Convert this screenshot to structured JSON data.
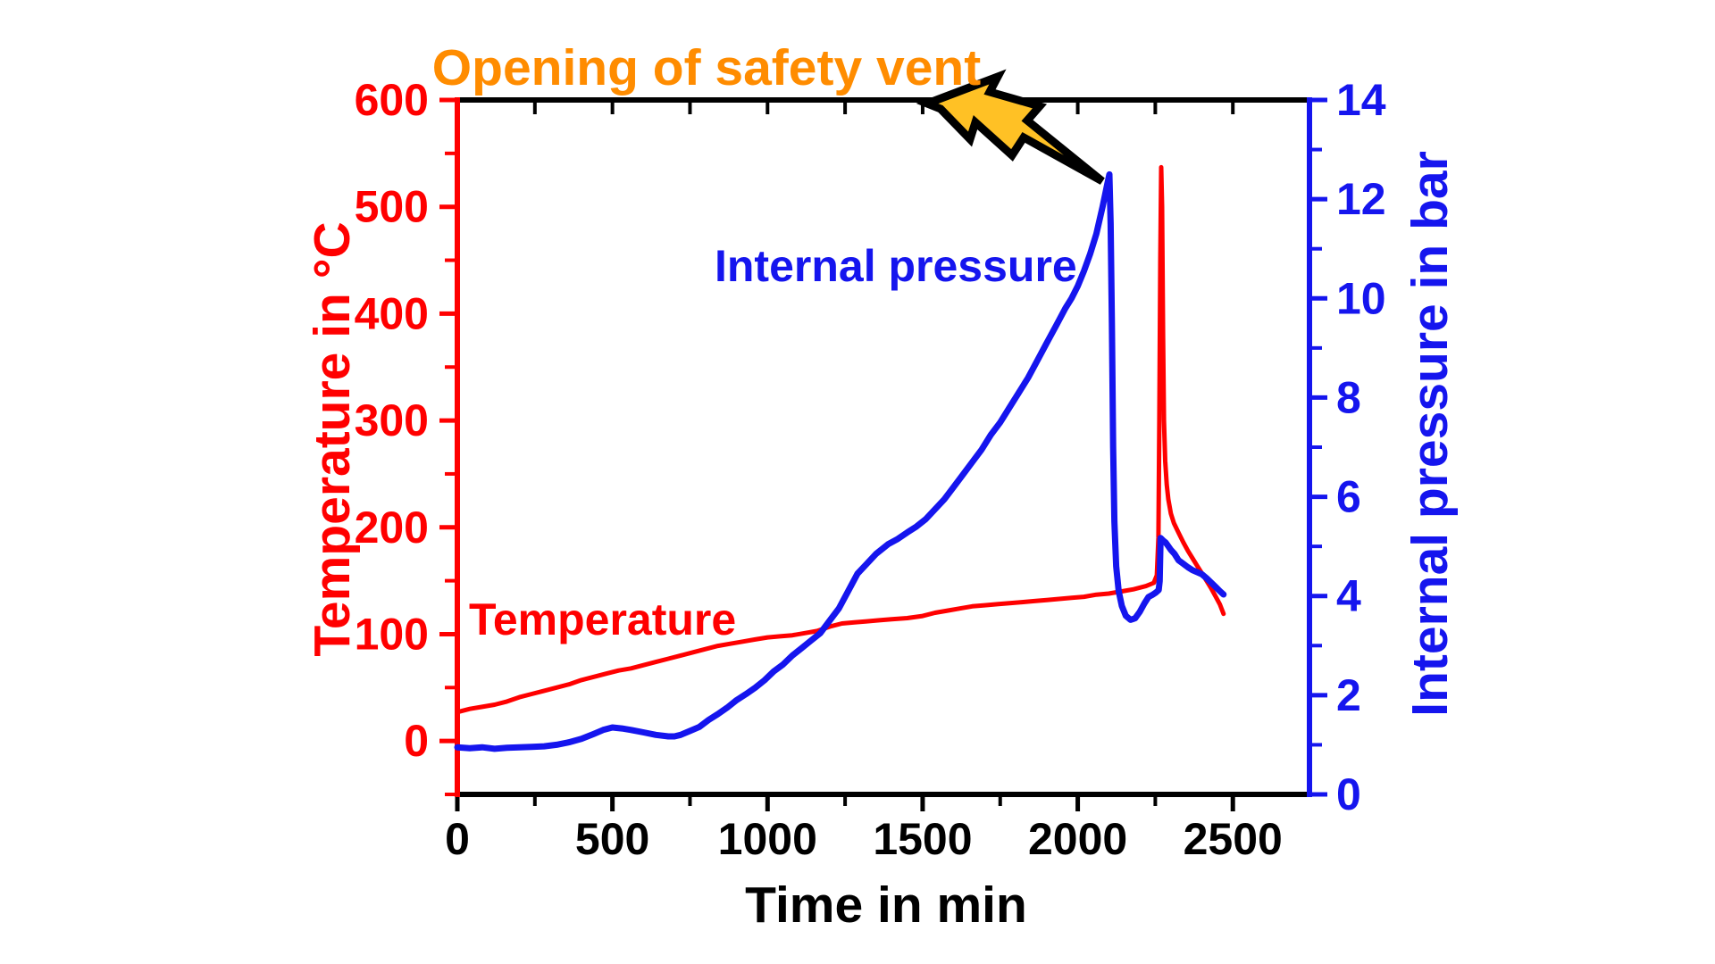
{
  "figure": {
    "background": "#FFFFFF"
  },
  "annotations": {
    "vent_title": "Opening of safety vent",
    "vent_title_color": "#FF8C00",
    "temperature_label": "Temperature",
    "pressure_label": "Internal pressure",
    "lightning_icon": "lightning-bolt-icon",
    "lightning_fill": "#FFC125",
    "lightning_stroke": "#000000"
  },
  "colors": {
    "temperature": "#FF0000",
    "pressure": "#1515EE",
    "frame": "#000000",
    "title_orange": "#FF8C00"
  },
  "chart_data": {
    "type": "line",
    "title": "Opening of safety vent",
    "xlabel": "Time in min",
    "ylabel_left": "Temperature in °C",
    "ylabel_right": "Internal pressure in bar",
    "grid": false,
    "x_range": [
      0,
      2747
    ],
    "y_left_range": [
      -50,
      600
    ],
    "y_right_range": [
      0,
      14
    ],
    "x_ticks_major": [
      0,
      500,
      1000,
      1500,
      2000,
      2500
    ],
    "x_ticks_minor": [
      250,
      750,
      1250,
      1750,
      2250
    ],
    "top_ticks": [
      250,
      500,
      750,
      1000,
      1250,
      1500,
      1750,
      2000,
      2250,
      2500
    ],
    "y_left_ticks_major": [
      0,
      100,
      200,
      300,
      400,
      500,
      600
    ],
    "y_left_ticks_minor": [
      -50,
      50,
      150,
      250,
      350,
      450,
      550
    ],
    "y_right_ticks_major": [
      0,
      2,
      4,
      6,
      8,
      10,
      12,
      14
    ],
    "y_right_ticks_minor": [
      1,
      3,
      5,
      7,
      9,
      11,
      13
    ],
    "event": {
      "label": "Opening of safety vent",
      "time_min": 2100,
      "pressure_bar": 12.5
    },
    "series": [
      {
        "name": "Temperature",
        "axis": "left",
        "unit": "°C",
        "color": "#FF0000",
        "width": 5,
        "points": [
          [
            0,
            27
          ],
          [
            40,
            30
          ],
          [
            80,
            32
          ],
          [
            120,
            34
          ],
          [
            160,
            37
          ],
          [
            200,
            41
          ],
          [
            240,
            44
          ],
          [
            280,
            47
          ],
          [
            320,
            50
          ],
          [
            360,
            53
          ],
          [
            400,
            57
          ],
          [
            440,
            60
          ],
          [
            480,
            63
          ],
          [
            520,
            66
          ],
          [
            560,
            68
          ],
          [
            600,
            71
          ],
          [
            640,
            74
          ],
          [
            680,
            77
          ],
          [
            720,
            80
          ],
          [
            760,
            83
          ],
          [
            800,
            86
          ],
          [
            840,
            89
          ],
          [
            880,
            91
          ],
          [
            920,
            93
          ],
          [
            960,
            95
          ],
          [
            1000,
            97
          ],
          [
            1040,
            98
          ],
          [
            1080,
            99
          ],
          [
            1120,
            101
          ],
          [
            1160,
            103
          ],
          [
            1180,
            105
          ],
          [
            1200,
            107
          ],
          [
            1240,
            110
          ],
          [
            1280,
            111
          ],
          [
            1320,
            112
          ],
          [
            1360,
            113
          ],
          [
            1400,
            114
          ],
          [
            1450,
            115
          ],
          [
            1500,
            117
          ],
          [
            1540,
            120
          ],
          [
            1580,
            122
          ],
          [
            1620,
            124
          ],
          [
            1660,
            126
          ],
          [
            1700,
            127
          ],
          [
            1740,
            128
          ],
          [
            1780,
            129
          ],
          [
            1820,
            130
          ],
          [
            1860,
            131
          ],
          [
            1900,
            132
          ],
          [
            1940,
            133
          ],
          [
            1980,
            134
          ],
          [
            2020,
            135
          ],
          [
            2060,
            137
          ],
          [
            2100,
            138
          ],
          [
            2140,
            140
          ],
          [
            2180,
            142
          ],
          [
            2220,
            145
          ],
          [
            2245,
            148
          ],
          [
            2255,
            155
          ],
          [
            2260,
            190
          ],
          [
            2263,
            300
          ],
          [
            2266,
            450
          ],
          [
            2269,
            537
          ],
          [
            2272,
            500
          ],
          [
            2275,
            380
          ],
          [
            2278,
            300
          ],
          [
            2282,
            262
          ],
          [
            2287,
            240
          ],
          [
            2292,
            226
          ],
          [
            2300,
            213
          ],
          [
            2310,
            204
          ],
          [
            2325,
            195
          ],
          [
            2340,
            186
          ],
          [
            2355,
            178
          ],
          [
            2370,
            171
          ],
          [
            2385,
            164
          ],
          [
            2400,
            157
          ],
          [
            2415,
            150
          ],
          [
            2430,
            143
          ],
          [
            2445,
            135
          ],
          [
            2458,
            128
          ],
          [
            2470,
            119
          ]
        ]
      },
      {
        "name": "Internal pressure",
        "axis": "right",
        "unit": "bar",
        "color": "#1515EE",
        "width": 7,
        "points": [
          [
            0,
            0.95
          ],
          [
            40,
            0.93
          ],
          [
            80,
            0.95
          ],
          [
            120,
            0.92
          ],
          [
            160,
            0.94
          ],
          [
            200,
            0.95
          ],
          [
            240,
            0.96
          ],
          [
            280,
            0.97
          ],
          [
            320,
            1.0
          ],
          [
            360,
            1.05
          ],
          [
            400,
            1.12
          ],
          [
            440,
            1.22
          ],
          [
            470,
            1.3
          ],
          [
            500,
            1.35
          ],
          [
            530,
            1.33
          ],
          [
            560,
            1.3
          ],
          [
            600,
            1.25
          ],
          [
            640,
            1.2
          ],
          [
            680,
            1.17
          ],
          [
            700,
            1.17
          ],
          [
            720,
            1.2
          ],
          [
            750,
            1.28
          ],
          [
            780,
            1.36
          ],
          [
            810,
            1.5
          ],
          [
            840,
            1.62
          ],
          [
            870,
            1.75
          ],
          [
            900,
            1.9
          ],
          [
            930,
            2.02
          ],
          [
            960,
            2.15
          ],
          [
            990,
            2.3
          ],
          [
            1020,
            2.48
          ],
          [
            1050,
            2.62
          ],
          [
            1080,
            2.8
          ],
          [
            1110,
            2.95
          ],
          [
            1140,
            3.1
          ],
          [
            1170,
            3.25
          ],
          [
            1200,
            3.5
          ],
          [
            1230,
            3.75
          ],
          [
            1260,
            4.1
          ],
          [
            1290,
            4.45
          ],
          [
            1320,
            4.65
          ],
          [
            1350,
            4.85
          ],
          [
            1390,
            5.05
          ],
          [
            1420,
            5.15
          ],
          [
            1450,
            5.28
          ],
          [
            1480,
            5.4
          ],
          [
            1510,
            5.55
          ],
          [
            1540,
            5.75
          ],
          [
            1570,
            5.95
          ],
          [
            1600,
            6.2
          ],
          [
            1630,
            6.45
          ],
          [
            1660,
            6.7
          ],
          [
            1690,
            6.95
          ],
          [
            1720,
            7.25
          ],
          [
            1750,
            7.5
          ],
          [
            1780,
            7.8
          ],
          [
            1810,
            8.1
          ],
          [
            1840,
            8.4
          ],
          [
            1870,
            8.75
          ],
          [
            1900,
            9.1
          ],
          [
            1930,
            9.45
          ],
          [
            1960,
            9.8
          ],
          [
            1980,
            10.0
          ],
          [
            2000,
            10.25
          ],
          [
            2020,
            10.55
          ],
          [
            2040,
            10.9
          ],
          [
            2060,
            11.3
          ],
          [
            2080,
            11.85
          ],
          [
            2095,
            12.3
          ],
          [
            2102,
            12.5
          ],
          [
            2106,
            11.5
          ],
          [
            2110,
            9.5
          ],
          [
            2114,
            7.0
          ],
          [
            2118,
            5.5
          ],
          [
            2124,
            4.6
          ],
          [
            2132,
            4.1
          ],
          [
            2142,
            3.8
          ],
          [
            2155,
            3.6
          ],
          [
            2170,
            3.52
          ],
          [
            2185,
            3.55
          ],
          [
            2200,
            3.68
          ],
          [
            2215,
            3.85
          ],
          [
            2228,
            3.98
          ],
          [
            2240,
            4.02
          ],
          [
            2252,
            4.07
          ],
          [
            2261,
            4.12
          ],
          [
            2264,
            4.3
          ],
          [
            2267,
            5.17
          ],
          [
            2275,
            5.12
          ],
          [
            2283,
            5.08
          ],
          [
            2290,
            5.02
          ],
          [
            2300,
            4.93
          ],
          [
            2312,
            4.85
          ],
          [
            2325,
            4.72
          ],
          [
            2340,
            4.65
          ],
          [
            2355,
            4.58
          ],
          [
            2370,
            4.52
          ],
          [
            2385,
            4.48
          ],
          [
            2400,
            4.44
          ],
          [
            2415,
            4.36
          ],
          [
            2430,
            4.27
          ],
          [
            2445,
            4.18
          ],
          [
            2458,
            4.1
          ],
          [
            2470,
            4.03
          ]
        ]
      }
    ],
    "lightning_polygon": [
      [
        1038,
        116
      ],
      [
        1117,
        86
      ],
      [
        1108,
        103
      ],
      [
        1164,
        119
      ],
      [
        1150,
        135
      ],
      [
        1234,
        203
      ],
      [
        1146,
        154
      ],
      [
        1133,
        174
      ],
      [
        1092,
        137
      ],
      [
        1086,
        156
      ],
      [
        1053,
        122
      ]
    ]
  }
}
